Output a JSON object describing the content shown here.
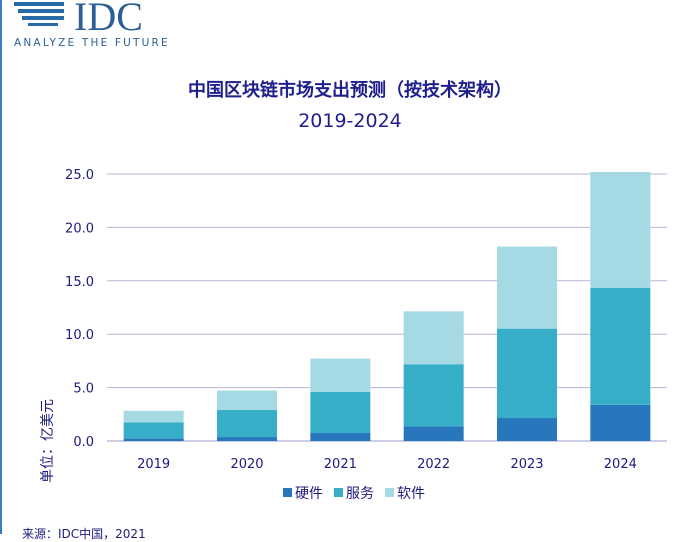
{
  "logo": {
    "brand": "IDC",
    "tagline": "ANALYZE THE FUTURE"
  },
  "source": "来源：IDC中国，2021",
  "colors": {
    "hardware": "#2877bd",
    "services": "#36aec8",
    "software": "#a5dae5",
    "text": "#1c1c7e",
    "grid": "#b5b5d6"
  },
  "chart_data": {
    "type": "bar",
    "stacked": true,
    "title": "中国区块链市场支出预测（按技术架构）",
    "subtitle": "2019-2024",
    "xlabel": "",
    "ylabel": "单位：亿美元",
    "ylim": [
      0,
      25
    ],
    "yticks": [
      "0.0",
      "5.0",
      "10.0",
      "15.0",
      "20.0",
      "25.0"
    ],
    "categories": [
      "2019",
      "2020",
      "2021",
      "2022",
      "2023",
      "2024"
    ],
    "series": [
      {
        "name": "硬件",
        "values": [
          0.25,
          0.37,
          0.75,
          1.37,
          2.15,
          3.39
        ]
      },
      {
        "name": "服务",
        "values": [
          1.49,
          2.53,
          3.86,
          5.82,
          8.37,
          10.96
        ]
      },
      {
        "name": "软件",
        "values": [
          1.09,
          1.83,
          3.11,
          4.95,
          7.69,
          10.84
        ]
      }
    ],
    "grid": true,
    "legend_position": "bottom"
  }
}
